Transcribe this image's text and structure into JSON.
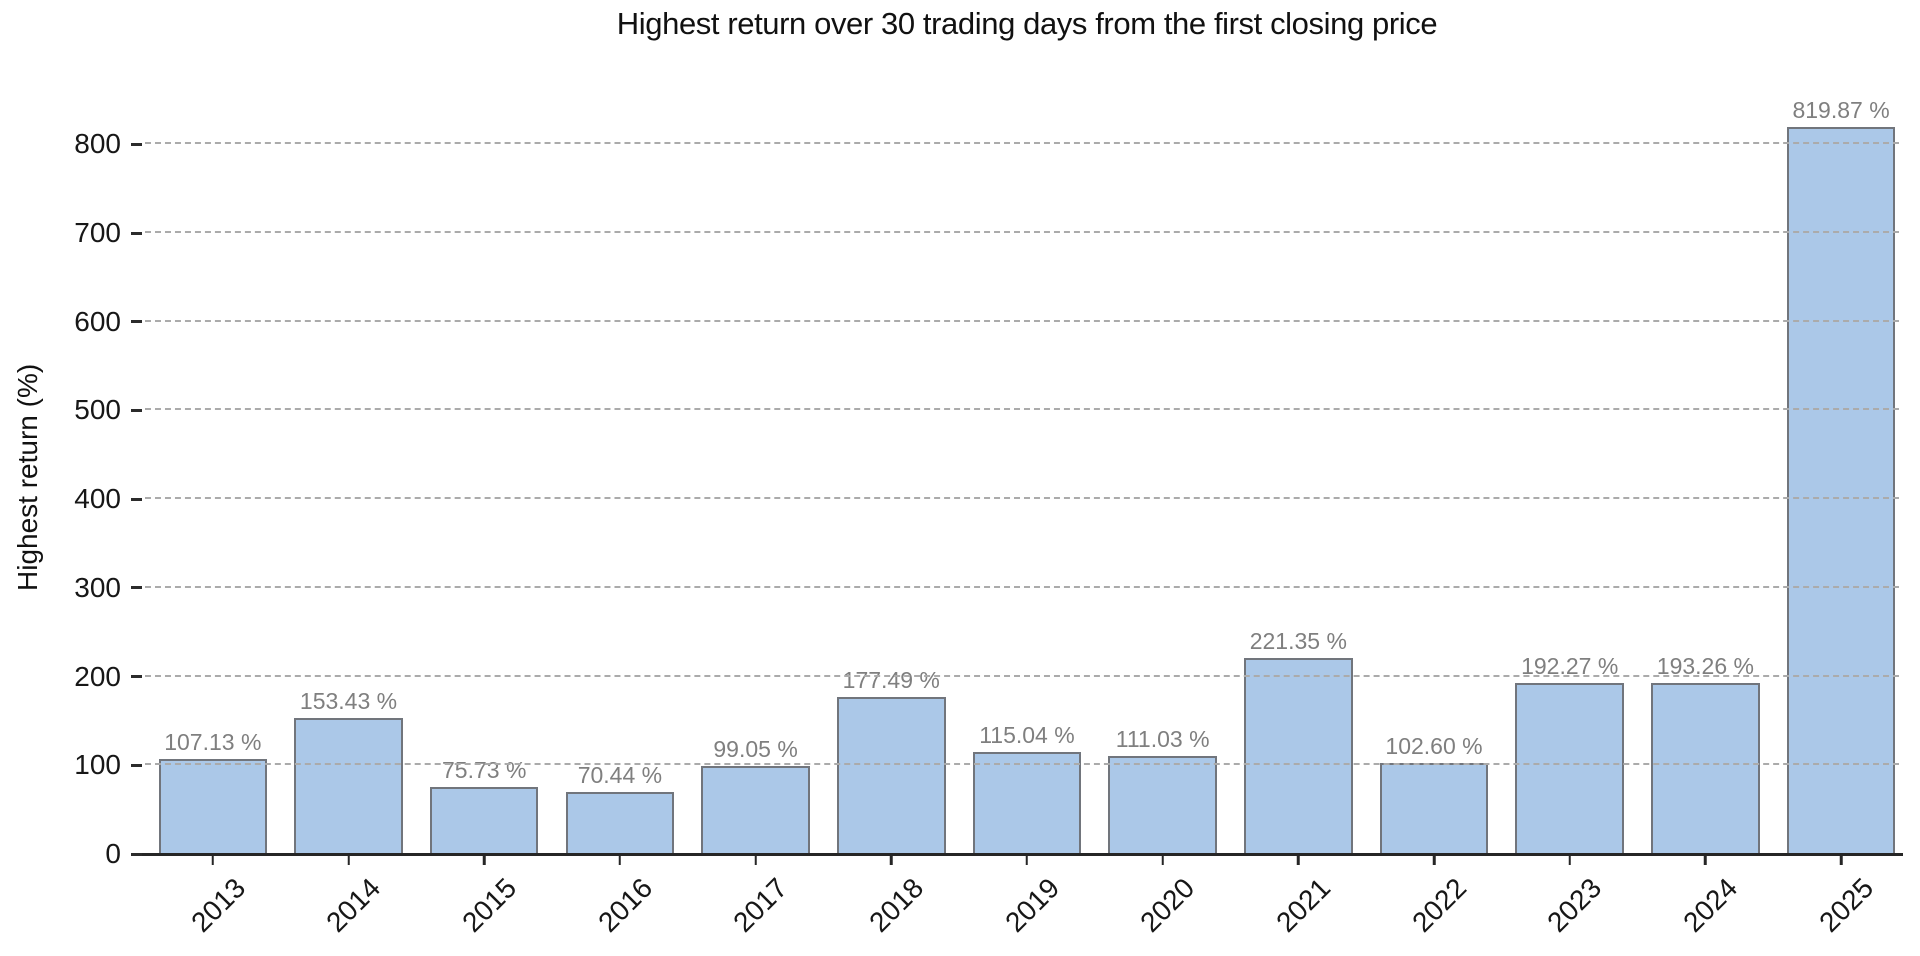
{
  "chart_data": {
    "type": "bar",
    "title": "Highest return over 30 trading days from the first closing price",
    "xlabel": "",
    "ylabel": "Highest return (%)",
    "categories": [
      "2013",
      "2014",
      "2015",
      "2016",
      "2017",
      "2018",
      "2019",
      "2020",
      "2021",
      "2022",
      "2023",
      "2024",
      "2025"
    ],
    "values": [
      107.13,
      153.43,
      75.73,
      70.44,
      99.05,
      177.49,
      115.04,
      111.03,
      221.35,
      102.6,
      192.27,
      193.26,
      819.87
    ],
    "value_labels": [
      "107.13 %",
      "153.43 %",
      "75.73 %",
      "70.44 %",
      "99.05 %",
      "177.49 %",
      "115.04 %",
      "111.03 %",
      "221.35 %",
      "102.60 %",
      "192.27 %",
      "193.26 %",
      "819.87 %"
    ],
    "yticks": [
      0,
      100,
      200,
      300,
      400,
      500,
      600,
      700,
      800
    ],
    "ylim": [
      0,
      850
    ],
    "grid": {
      "axis": "y",
      "style": "dashed",
      "on": true
    },
    "legend": {
      "shown": false
    },
    "colors": {
      "bar_fill": "#abc8e8",
      "bar_border": "#71757c",
      "value_label": "#7f7f7f",
      "tick_label": "#171717",
      "gridline": "#ababab",
      "axis_line": "#262626",
      "background": "#ffffff"
    }
  }
}
